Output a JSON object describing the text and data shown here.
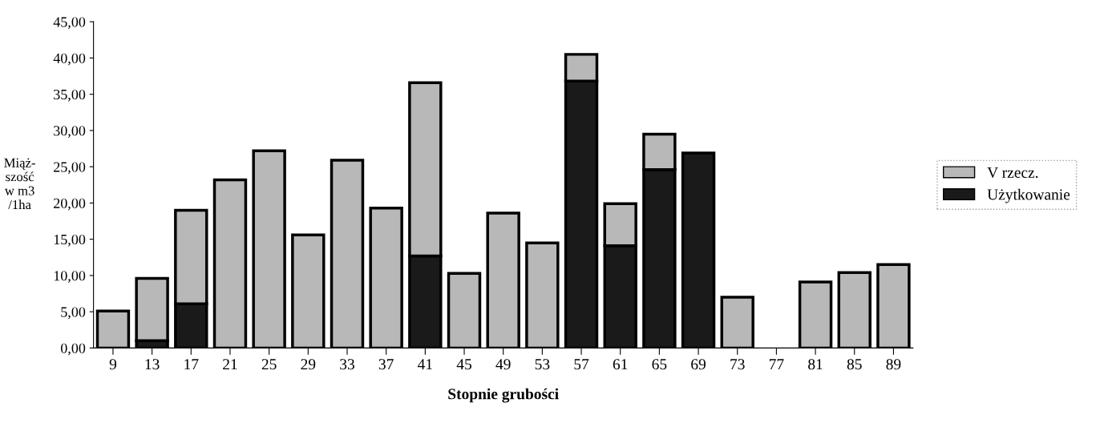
{
  "chart_data": {
    "type": "bar",
    "stacked": true,
    "xlabel": "Stopnie grubości",
    "ylabel": "Miąż-\nszość\nw m3\n/1ha",
    "categories": [
      "9",
      "13",
      "17",
      "21",
      "25",
      "29",
      "33",
      "37",
      "41",
      "45",
      "49",
      "53",
      "57",
      "61",
      "65",
      "69",
      "73",
      "77",
      "81",
      "85",
      "89"
    ],
    "series": [
      {
        "name": "Użytkowanie",
        "color": "#1a1a1a",
        "values": [
          null,
          1.0,
          6.1,
          null,
          null,
          null,
          null,
          null,
          12.7,
          null,
          null,
          null,
          36.8,
          14.1,
          24.6,
          26.9,
          null,
          null,
          null,
          null,
          null
        ]
      },
      {
        "name": "V rzecz.",
        "color": "#b8b8b8",
        "values": [
          5.1,
          8.6,
          12.9,
          23.2,
          27.2,
          15.6,
          25.9,
          19.3,
          23.9,
          10.3,
          18.6,
          14.5,
          3.7,
          5.8,
          4.9,
          null,
          7.0,
          null,
          9.1,
          10.4,
          11.5
        ]
      }
    ],
    "ylim": [
      0,
      45
    ],
    "yticks": [
      {
        "value": 0,
        "label": "0,00"
      },
      {
        "value": 5,
        "label": "5,00"
      },
      {
        "value": 10,
        "label": "10,00"
      },
      {
        "value": 15,
        "label": "15,00"
      },
      {
        "value": 20,
        "label": "20,00"
      },
      {
        "value": 25,
        "label": "25,00"
      },
      {
        "value": 30,
        "label": "30,00"
      },
      {
        "value": 35,
        "label": "35,00"
      },
      {
        "value": 40,
        "label": "40,00"
      },
      {
        "value": 45,
        "label": "45,00"
      }
    ],
    "legend": "right",
    "grid": false
  }
}
